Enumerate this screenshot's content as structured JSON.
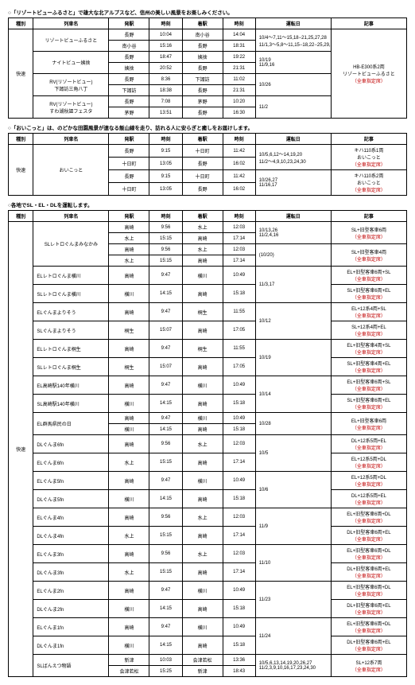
{
  "section1": {
    "title": "○「リゾートビューふるさと」で雄大な北アルプスなど、信州の美しい風景をお楽しみください。",
    "headers": [
      "種別",
      "列車名",
      "発駅",
      "時刻",
      "着駅",
      "時刻",
      "運転日",
      "記事"
    ],
    "type": "快速",
    "note": "HB-E300系2両\nリゾートビューふるさと\n（全車指定席）",
    "groups": [
      {
        "name": "リゾートビューふるさと",
        "rows": [
          {
            "from": "長野",
            "dep": "10:04",
            "to": "南小谷",
            "arr": "14:04"
          },
          {
            "from": "南小谷",
            "dep": "15:16",
            "to": "長野",
            "arr": "18:31"
          }
        ],
        "days": "10/4～7,11～15,18−21,25,27,28\n11/1,3～5,8～11,15−18,22−25,29,30"
      },
      {
        "name": "ナイトビュー姨捨",
        "rows": [
          {
            "from": "長野",
            "dep": "18:47",
            "to": "姨捨",
            "arr": "19:22"
          },
          {
            "from": "姨捨",
            "dep": "20:52",
            "to": "長野",
            "arr": "21:31"
          }
        ],
        "days": "10/19\n11/9,16"
      },
      {
        "name": "RV(リゾートビュー)\n下諏訪三角八丁",
        "rows": [
          {
            "from": "長野",
            "dep": "8:36",
            "to": "下諏訪",
            "arr": "11:02"
          },
          {
            "from": "下諏訪",
            "dep": "18:38",
            "to": "長野",
            "arr": "21:31"
          }
        ],
        "days": "10/26"
      },
      {
        "name": "RV(リゾートビュー)\nすわ湖秋謳フェスタ",
        "rows": [
          {
            "from": "長野",
            "dep": "7:08",
            "to": "茅野",
            "arr": "10:20"
          },
          {
            "from": "茅野",
            "dep": "13:51",
            "to": "長野",
            "arr": "16:30"
          }
        ],
        "days": "11/2"
      }
    ]
  },
  "section2": {
    "title": "○「おいこっと」は、のどかな田園風景が連なる飯山線を走り、訪れる人に安らぎと癒しをお届けします。",
    "headers": [
      "種別",
      "列車名",
      "発駅",
      "時刻",
      "着駅",
      "時刻",
      "運転日",
      "記事"
    ],
    "type": "快速",
    "name": "おいこっと",
    "blocks": [
      {
        "rows": [
          {
            "from": "長野",
            "dep": "9:15",
            "to": "十日町",
            "arr": "11:42"
          },
          {
            "from": "十日町",
            "dep": "13:05",
            "to": "長野",
            "arr": "16:02"
          }
        ],
        "days": "10/5,6,12～14,19,20\n11/2～4,9,10,23,24,30",
        "note": "キハ110系1両\nおいこっと\n（全車指定席）"
      },
      {
        "rows": [
          {
            "from": "長野",
            "dep": "9:15",
            "to": "十日町",
            "arr": "11:42"
          },
          {
            "from": "十日町",
            "dep": "13:05",
            "to": "長野",
            "arr": "16:02"
          }
        ],
        "days": "10/26,27\n11/16,17",
        "note": "キハ110系2両\nおいこっと\n（全車指定席）"
      }
    ]
  },
  "section3": {
    "title": "○各地でSL・EL・DLを運転します。",
    "headers": [
      "種別",
      "列車名",
      "発駅",
      "時刻",
      "着駅",
      "時刻",
      "運転日",
      "記事"
    ],
    "type": "快速",
    "groups": [
      {
        "name": "SLレトロぐんまみなかみ",
        "rowsA": [
          {
            "from": "高崎",
            "dep": "9:56",
            "to": "水上",
            "arr": "12:03"
          },
          {
            "from": "水上",
            "dep": "15:15",
            "to": "高崎",
            "arr": "17:14"
          }
        ],
        "daysA": "10/13,26\n11/2,4,16",
        "noteA": "SL+旧型客車6両\n（全車指定席）",
        "rowsB": [
          {
            "from": "高崎",
            "dep": "9:56",
            "to": "水上",
            "arr": "12:03"
          },
          {
            "from": "水上",
            "dep": "15:15",
            "to": "高崎",
            "arr": "17:14"
          }
        ],
        "daysB": "(10/20)",
        "noteB": "SL+旧型客車4両\n（全車指定席）"
      },
      {
        "name": "ELレトロぐんま横川",
        "rows": [
          {
            "from": "高崎",
            "dep": "9:47",
            "to": "横川",
            "arr": "10:49"
          }
        ],
        "days": "11/3,17",
        "note": "EL+旧型客車6両+SL\n（全車指定席）",
        "pair": "SL"
      },
      {
        "name": "SLレトロぐんま横川",
        "rows": [
          {
            "from": "横川",
            "dep": "14:15",
            "to": "高崎",
            "arr": "15:18"
          }
        ],
        "note": "SL+旧型客車6両+EL\n（全車指定席）"
      },
      {
        "name": "ELぐんまよりそう",
        "rows": [
          {
            "from": "高崎",
            "dep": "9:47",
            "to": "桐生",
            "arr": "11:55"
          }
        ],
        "days": "10/12",
        "note": "EL+12系4両+SL\n（全車指定席）",
        "pair": "SL"
      },
      {
        "name": "SLぐんまよりそう",
        "rows": [
          {
            "from": "桐生",
            "dep": "15:07",
            "to": "高崎",
            "arr": "17:05"
          }
        ],
        "note": "SL+12系4両+EL\n（全車指定席）"
      },
      {
        "name": "ELレトロぐんま桐生",
        "rows": [
          {
            "from": "高崎",
            "dep": "9:47",
            "to": "桐生",
            "arr": "11:55"
          }
        ],
        "days": "10/19",
        "note": "EL+旧型客車4両+SL\n（全車指定席）",
        "pair": "SL"
      },
      {
        "name": "SLレトロぐんま桐生",
        "rows": [
          {
            "from": "桐生",
            "dep": "15:07",
            "to": "高崎",
            "arr": "17:05"
          }
        ],
        "note": "SL+旧型客車4両+EL\n（全車指定席）"
      },
      {
        "name": "EL高崎駅140年横川",
        "rows": [
          {
            "from": "高崎",
            "dep": "9:47",
            "to": "横川",
            "arr": "10:49"
          }
        ],
        "days": "10/14",
        "note": "EL+旧型客車6両+SL\n（全車指定席）",
        "pair": "SL"
      },
      {
        "name": "SL高崎駅140年横川",
        "rows": [
          {
            "from": "横川",
            "dep": "14:15",
            "to": "高崎",
            "arr": "15:18"
          }
        ],
        "note": "SL+旧型客車6両+EL\n（全車指定席）"
      },
      {
        "name": "EL群馬県民の日",
        "rows": [
          {
            "from": "高崎",
            "dep": "9:47",
            "to": "横川",
            "arr": "10:49"
          },
          {
            "from": "横川",
            "dep": "14:15",
            "to": "高崎",
            "arr": "15:18"
          }
        ],
        "days": "10/28",
        "note": "EL+旧型客車6両\n（全車指定席）"
      },
      {
        "name": "DLぐんま6fn",
        "rows": [
          {
            "from": "高崎",
            "dep": "9:56",
            "to": "水上",
            "arr": "12:03"
          }
        ],
        "days": "10/5",
        "note": "DL+12系5両+EL\n（全車指定席）",
        "pair": "EL"
      },
      {
        "name": "ELぐんま6fn",
        "rows": [
          {
            "from": "水上",
            "dep": "15:15",
            "to": "高崎",
            "arr": "17:14"
          }
        ],
        "note": "EL+12系5両+DL\n（全車指定席）"
      },
      {
        "name": "ELぐんま5fn",
        "rows": [
          {
            "from": "高崎",
            "dep": "9:47",
            "to": "横川",
            "arr": "10:49"
          }
        ],
        "days": "10/6",
        "note": "EL+12系5両+DL\n（全車指定席）",
        "pair": "DL"
      },
      {
        "name": "DLぐんま5fn",
        "rows": [
          {
            "from": "横川",
            "dep": "14:15",
            "to": "高崎",
            "arr": "15:18"
          }
        ],
        "note": "DL+12系5両+EL\n（全車指定席）"
      },
      {
        "name": "ELぐんま4fn",
        "rows": [
          {
            "from": "高崎",
            "dep": "9:56",
            "to": "水上",
            "arr": "12:03"
          }
        ],
        "days": "11/9",
        "note": "EL+旧型客車6両+DL\n（全車指定席）",
        "pair": "DL"
      },
      {
        "name": "DLぐんま4fn",
        "rows": [
          {
            "from": "水上",
            "dep": "15:15",
            "to": "高崎",
            "arr": "17:14"
          }
        ],
        "note": "DL+旧型客車6両+EL\n（全車指定席）"
      },
      {
        "name": "ELぐんま3fn",
        "rows": [
          {
            "from": "高崎",
            "dep": "9:56",
            "to": "水上",
            "arr": "12:03"
          }
        ],
        "days": "11/10",
        "note": "EL+旧型客車6両+DL\n（全車指定席）",
        "pair": "DL"
      },
      {
        "name": "DLぐんま3fn",
        "rows": [
          {
            "from": "水上",
            "dep": "15:15",
            "to": "高崎",
            "arr": "17:14"
          }
        ],
        "note": "DL+旧型客車6両+EL\n（全車指定席）"
      },
      {
        "name": "ELぐんま2fn",
        "rows": [
          {
            "from": "高崎",
            "dep": "9:47",
            "to": "横川",
            "arr": "10:49"
          }
        ],
        "days": "11/23",
        "note": "EL+旧型客車6両+DL\n（全車指定席）",
        "pair": "DL"
      },
      {
        "name": "DLぐんま2fn",
        "rows": [
          {
            "from": "横川",
            "dep": "14:15",
            "to": "高崎",
            "arr": "15:18"
          }
        ],
        "note": "DL+旧型客車6両+EL\n（全車指定席）"
      },
      {
        "name": "ELぐんま1fn",
        "rows": [
          {
            "from": "高崎",
            "dep": "9:47",
            "to": "横川",
            "arr": "10:49"
          }
        ],
        "days": "11/24",
        "note": "EL+旧型客車6両+DL\n（全車指定席）",
        "pair": "DL"
      },
      {
        "name": "DLぐんま1fn",
        "rows": [
          {
            "from": "横川",
            "dep": "14:15",
            "to": "高崎",
            "arr": "15:18"
          }
        ],
        "note": "DL+旧型客車6両+EL\n（全車指定席）"
      },
      {
        "name": "SLばんえつ物語",
        "rows": [
          {
            "from": "新津",
            "dep": "10:03",
            "to": "会津若松",
            "arr": "13:36"
          },
          {
            "from": "会津若松",
            "dep": "15:25",
            "to": "新津",
            "arr": "18:43"
          }
        ],
        "days": "10/5,6,13,14,19,20,26,27\n11/2,3,9,10,16,17,23,24,30",
        "note": "SL+12系7両\n（全車指定席）"
      }
    ]
  }
}
